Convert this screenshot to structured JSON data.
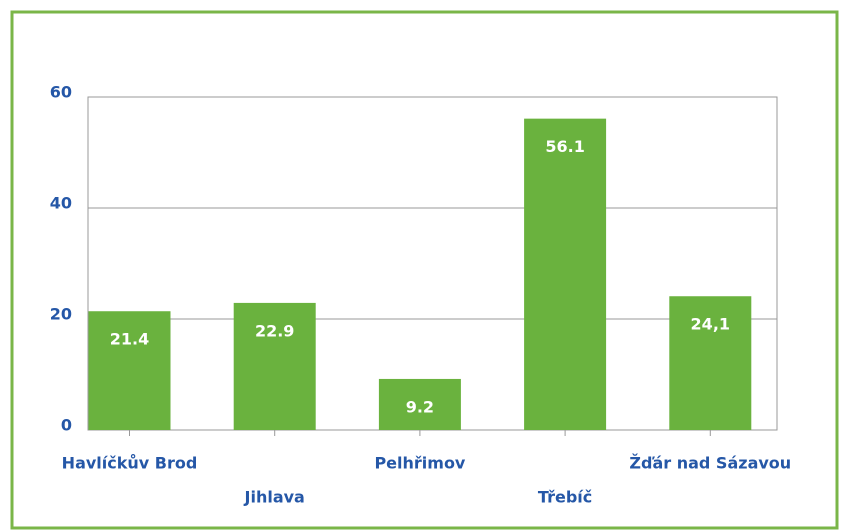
{
  "chart_data": {
    "type": "bar",
    "categories": [
      "Havlíčkův Brod",
      "Jihlava",
      "Pelhřimov",
      "Třebíč",
      "Žďár nad Sázavou"
    ],
    "values": [
      21.4,
      22.9,
      9.2,
      56.1,
      24.1
    ],
    "value_labels": [
      "21.4",
      "22.9",
      "9.2",
      "56.1",
      "24,1"
    ],
    "color": "#6ab23e",
    "ylim": [
      0,
      60
    ],
    "yticks": [
      0,
      20,
      40,
      60
    ],
    "grid": true
  }
}
